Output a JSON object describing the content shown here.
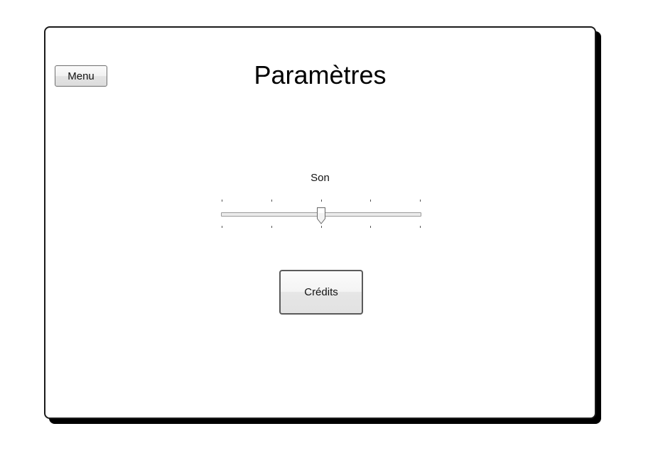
{
  "header": {
    "menu_label": "Menu",
    "title": "Paramètres"
  },
  "sound": {
    "label": "Son",
    "value_fraction": 0.5,
    "tick_count": 5
  },
  "actions": {
    "credits_label": "Crédits"
  }
}
